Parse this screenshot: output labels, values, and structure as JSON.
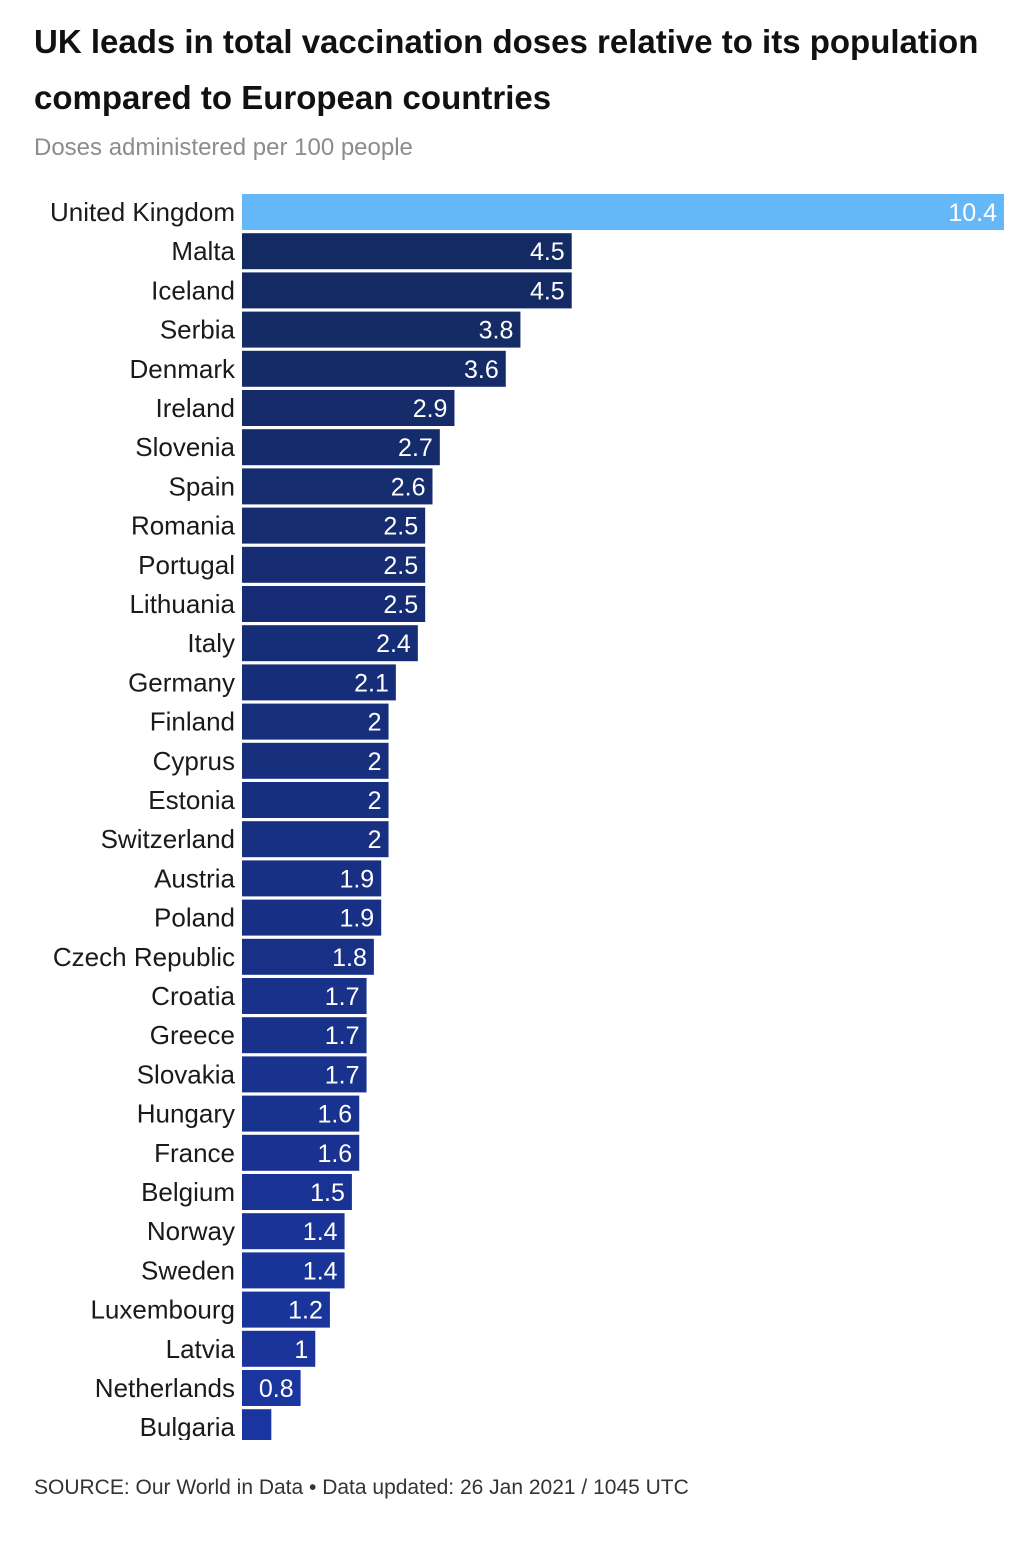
{
  "title": "UK leads in total vaccination doses relative to its population compared to European countries",
  "subtitle": "Doses administered per 100 people",
  "source": "SOURCE: Our World in Data • Data updated: 26 Jan 2021 / 1045 UTC",
  "colors": {
    "highlight": "#64b8f7",
    "bar_top": "#142a62",
    "bar_bottom": "#1a35a0"
  },
  "chart_data": {
    "type": "bar",
    "orientation": "horizontal",
    "highlight_category": "United Kingdom",
    "categories": [
      "United Kingdom",
      "Malta",
      "Iceland",
      "Serbia",
      "Denmark",
      "Ireland",
      "Slovenia",
      "Spain",
      "Romania",
      "Portugal",
      "Lithuania",
      "Italy",
      "Germany",
      "Finland",
      "Cyprus",
      "Estonia",
      "Switzerland",
      "Austria",
      "Poland",
      "Czech Republic",
      "Croatia",
      "Greece",
      "Slovakia",
      "Hungary",
      "France",
      "Belgium",
      "Norway",
      "Sweden",
      "Luxembourg",
      "Latvia",
      "Netherlands",
      "Bulgaria"
    ],
    "values": [
      10.4,
      4.5,
      4.5,
      3.8,
      3.6,
      2.9,
      2.7,
      2.6,
      2.5,
      2.5,
      2.5,
      2.4,
      2.1,
      2,
      2,
      2,
      2,
      1.9,
      1.9,
      1.8,
      1.7,
      1.7,
      1.7,
      1.6,
      1.6,
      1.5,
      1.4,
      1.4,
      1.2,
      1,
      0.8,
      0.4
    ],
    "value_labels": [
      "10.4",
      "4.5",
      "4.5",
      "3.8",
      "3.6",
      "2.9",
      "2.7",
      "2.6",
      "2.5",
      "2.5",
      "2.5",
      "2.4",
      "2.1",
      "2",
      "2",
      "2",
      "2",
      "1.9",
      "1.9",
      "1.8",
      "1.7",
      "1.7",
      "1.7",
      "1.6",
      "1.6",
      "1.5",
      "1.4",
      "1.4",
      "1.2",
      "1",
      "0.8",
      ""
    ],
    "xlim": [
      0,
      10.4
    ],
    "grid": false
  }
}
